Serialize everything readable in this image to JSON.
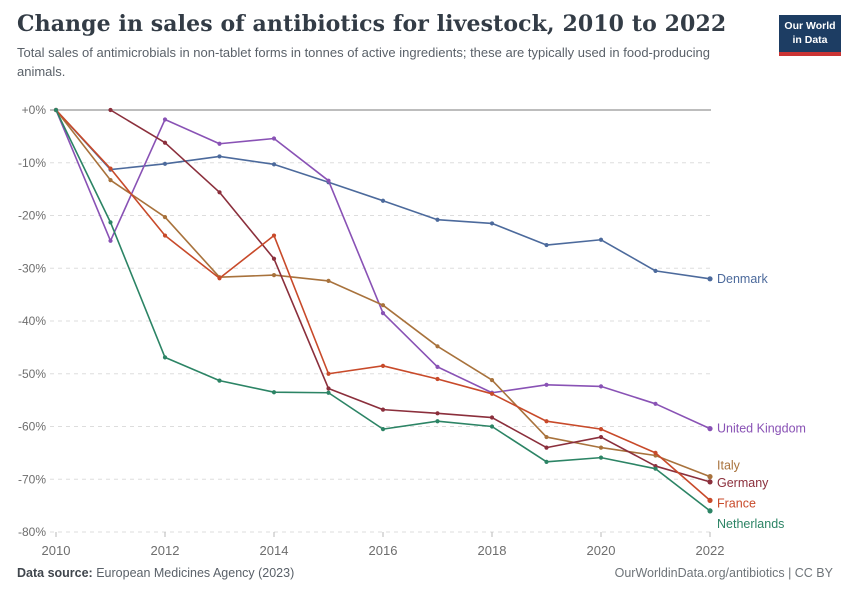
{
  "header": {
    "title": "Change in sales of antibiotics for livestock, 2010 to 2022",
    "subtitle": "Total sales of antimicrobials in non-tablet forms in tonnes of active ingredients; these are typically used in food-producing animals.",
    "logo": {
      "line1": "Our World",
      "line2": "in Data",
      "bg": "#1D3D63",
      "stripe": "#CB3434"
    }
  },
  "footer": {
    "source_label": "Data source:",
    "source_text": " European Medicines Agency (2023)",
    "right_text": "OurWorldinData.org/antibiotics | CC BY"
  },
  "chart_data": {
    "type": "line",
    "title": "Change in sales of antibiotics for livestock, 2010 to 2022",
    "xlabel": "",
    "ylabel": "",
    "x": [
      2010,
      2011,
      2012,
      2013,
      2014,
      2015,
      2016,
      2017,
      2018,
      2019,
      2020,
      2021,
      2022
    ],
    "xlim": [
      2010,
      2022
    ],
    "ylim": [
      -80,
      0
    ],
    "grid": true,
    "legend_position": "right-end-labels",
    "x_tick_labels": [
      "2010",
      "2012",
      "2014",
      "2016",
      "2018",
      "2020",
      "2022"
    ],
    "y_ticks": [
      0,
      -10,
      -20,
      -30,
      -40,
      -50,
      -60,
      -70,
      -80
    ],
    "y_tick_labels": [
      "+0%",
      "-10%",
      "-20%",
      "-30%",
      "-40%",
      "-50%",
      "-60%",
      "-70%",
      "-80%"
    ],
    "unit": "% change since 2010",
    "series": [
      {
        "name": "Denmark",
        "color": "#4C6A9C",
        "label_dy": 0,
        "values": [
          0,
          -11.3,
          -10.2,
          -8.8,
          -10.3,
          -13.7,
          -17.2,
          -20.8,
          -21.5,
          -25.6,
          -24.6,
          -30.5,
          -32
        ]
      },
      {
        "name": "United Kingdom",
        "color": "#8952B5",
        "label_dy": 0,
        "values": [
          0,
          -24.8,
          -1.8,
          -6.4,
          -5.4,
          -13.4,
          -38.5,
          -48.7,
          -53.6,
          -52.1,
          -52.4,
          -55.7,
          -60.4
        ]
      },
      {
        "name": "Italy",
        "color": "#A8723C",
        "label_dy": -11,
        "values": [
          0,
          -13.3,
          -20.3,
          -31.7,
          -31.3,
          -32.4,
          -37,
          -44.8,
          -51.2,
          -62,
          -64,
          -65.5,
          -69.5
        ]
      },
      {
        "name": "Germany",
        "color": "#8B2F3C",
        "label_dy": 1,
        "values": [
          null,
          0,
          -6.2,
          -15.6,
          -28.2,
          -52.8,
          -56.8,
          -57.5,
          -58.3,
          -64,
          -62,
          -67.5,
          -70.5
        ]
      },
      {
        "name": "France",
        "color": "#C84A2A",
        "label_dy": 3,
        "values": [
          0,
          -11.1,
          -23.8,
          -31.9,
          -23.8,
          -50,
          -48.5,
          -51,
          -53.8,
          -59,
          -60.5,
          -65,
          -74
        ]
      },
      {
        "name": "Netherlands",
        "color": "#2C8465",
        "label_dy": 13,
        "values": [
          0,
          -21.3,
          -46.9,
          -51.3,
          -53.5,
          -53.6,
          -60.5,
          -59,
          -60,
          -66.7,
          -65.9,
          -68,
          -76
        ]
      }
    ]
  }
}
